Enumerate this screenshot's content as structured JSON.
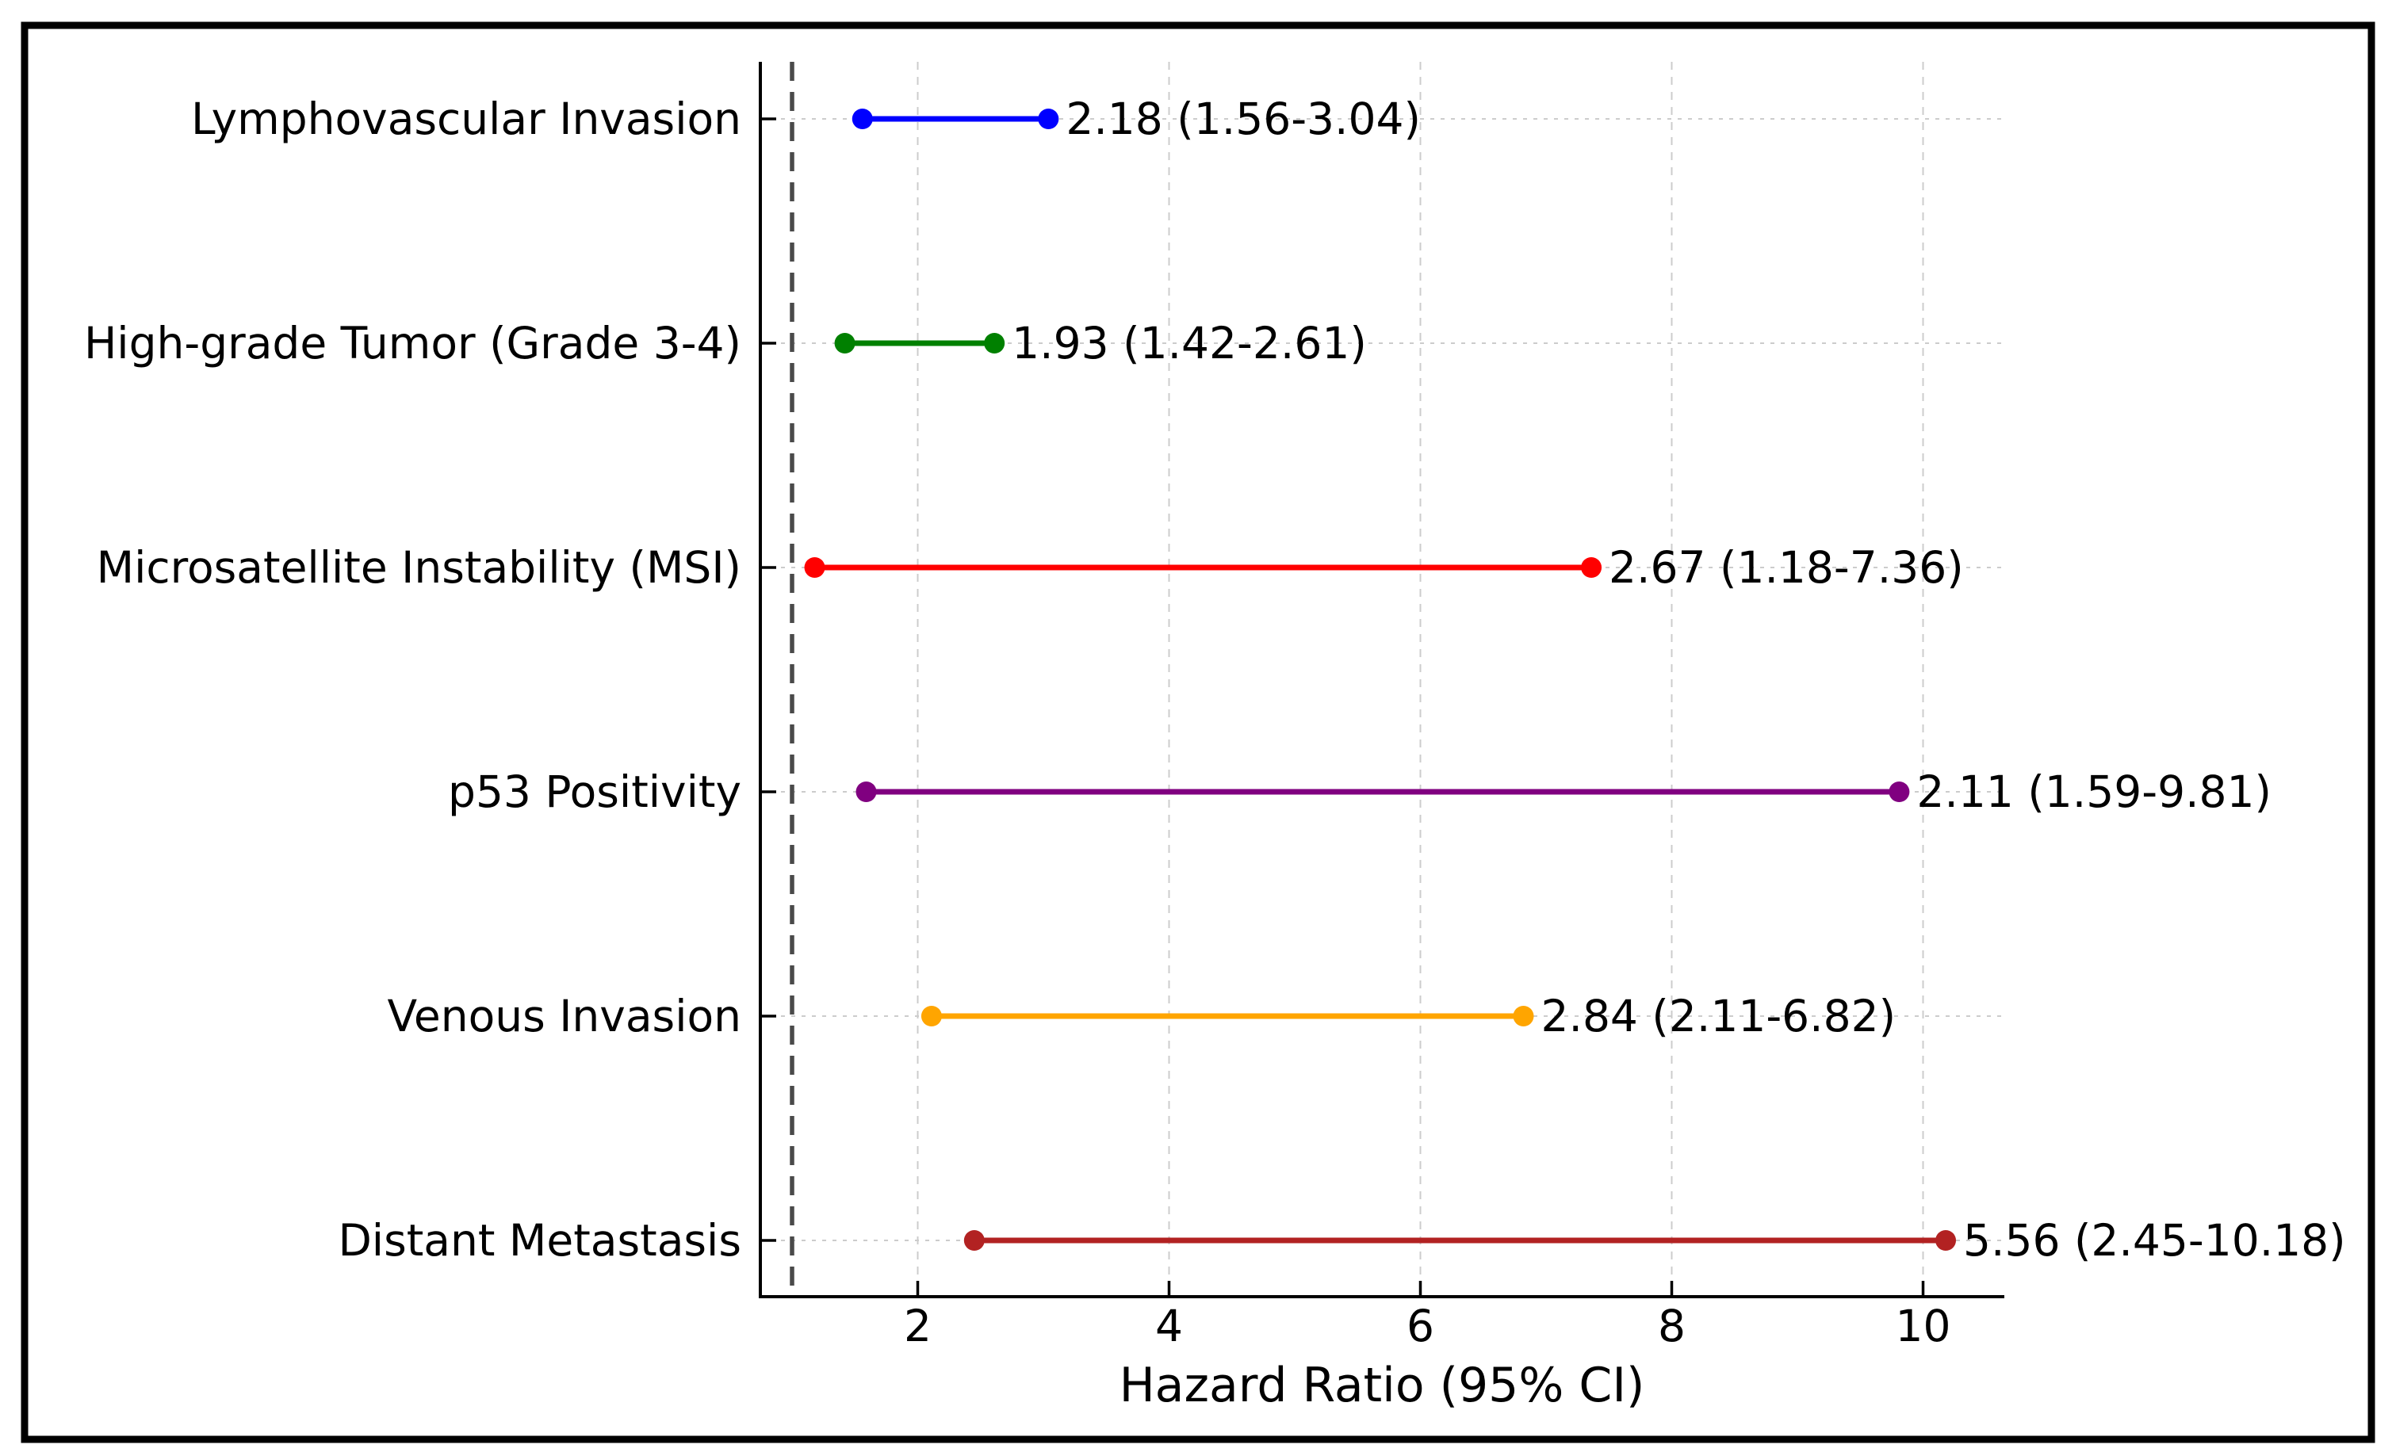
{
  "figure": {
    "background_color": "#ffffff",
    "border_color": "#000000"
  },
  "chart_data": {
    "type": "scatter",
    "subtype": "forest-plot",
    "title": "",
    "xlabel": "Hazard Ratio (95% CI)",
    "ylabel": "",
    "xlim": [
      0.75,
      10.65
    ],
    "x_ticks": [
      "2",
      "4",
      "6",
      "8",
      "10"
    ],
    "x_tick_values": [
      2,
      4,
      6,
      8,
      10
    ],
    "grid": true,
    "grid_color": "#cccccc",
    "axis_color": "#000000",
    "reference_line": {
      "x": 1,
      "style": "dashed",
      "color": "#4a4a4a"
    },
    "legend": null,
    "categories": [
      "Lymphovascular Invasion",
      "High-grade Tumor (Grade 3-4)",
      "Microsatellite Instability (MSI)",
      "p53 Positivity",
      "Venous Invasion",
      "Distant Metastasis"
    ],
    "rows": [
      {
        "label": "Lymphovascular Invasion",
        "hr": 2.18,
        "ci_low": 1.56,
        "ci_high": 3.04,
        "annotation": "2.18 (1.56-3.04)",
        "color": "#0000ff"
      },
      {
        "label": "High-grade Tumor (Grade 3-4)",
        "hr": 1.93,
        "ci_low": 1.42,
        "ci_high": 2.61,
        "annotation": "1.93 (1.42-2.61)",
        "color": "#008000"
      },
      {
        "label": "Microsatellite Instability (MSI)",
        "hr": 2.67,
        "ci_low": 1.18,
        "ci_high": 7.36,
        "annotation": "2.67 (1.18-7.36)",
        "color": "#ff0000"
      },
      {
        "label": "p53 Positivity",
        "hr": 2.11,
        "ci_low": 1.59,
        "ci_high": 9.81,
        "annotation": "2.11 (1.59-9.81)",
        "color": "#800080"
      },
      {
        "label": "Venous Invasion",
        "hr": 2.84,
        "ci_low": 2.11,
        "ci_high": 6.82,
        "annotation": "2.84 (2.11-6.82)",
        "color": "#ffa500"
      },
      {
        "label": "Distant Metastasis",
        "hr": 5.56,
        "ci_low": 2.45,
        "ci_high": 10.18,
        "annotation": "5.56 (2.45-10.18)",
        "color": "#b22222"
      }
    ]
  }
}
